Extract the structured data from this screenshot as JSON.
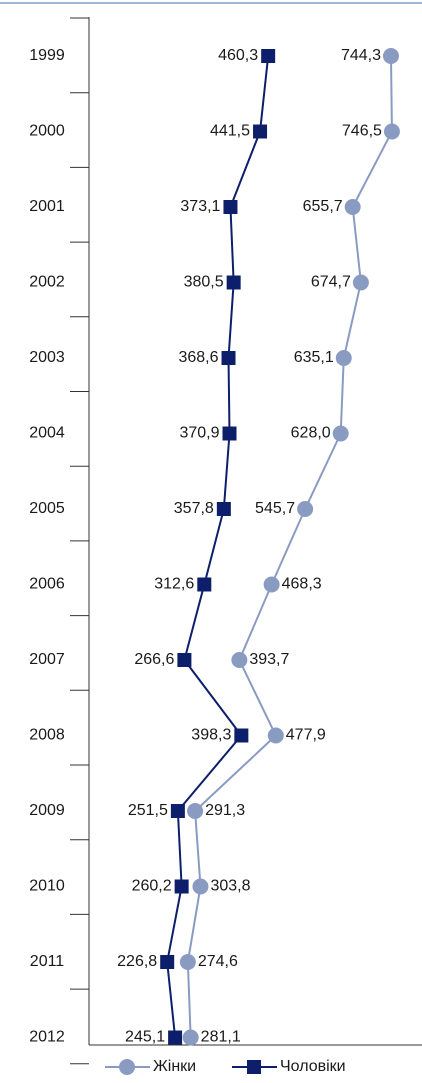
{
  "chart_data": {
    "type": "line",
    "orientation": "horizontal",
    "categories": [
      "1999",
      "2000",
      "2001",
      "2002",
      "2003",
      "2004",
      "2005",
      "2006",
      "2007",
      "2008",
      "2009",
      "2010",
      "2011",
      "2012"
    ],
    "xlim": [
      46,
      816
    ],
    "series": [
      {
        "name": "Жінки",
        "color": "#8a9bc2",
        "marker": "circle",
        "values": [
          744.3,
          746.5,
          655.7,
          674.7,
          635.1,
          628.0,
          545.7,
          468.3,
          393.7,
          477.9,
          291.3,
          303.8,
          274.6,
          281.1
        ],
        "value_labels": [
          "744,3",
          "746,5",
          "655,7",
          "674,7",
          "635,1",
          "628,0",
          "545,7",
          "468,3",
          "393,7",
          "477,9",
          "291,3",
          "303,8",
          "274,6",
          "281,1"
        ]
      },
      {
        "name": "Чоловіки",
        "color": "#0d1f6b",
        "marker": "square",
        "values": [
          460.3,
          441.5,
          373.1,
          380.5,
          368.6,
          370.9,
          357.8,
          312.6,
          266.6,
          398.3,
          251.5,
          260.2,
          226.8,
          245.1
        ],
        "value_labels": [
          "460,3",
          "441,5",
          "373,1",
          "380,5",
          "368,6",
          "370,9",
          "357,8",
          "312,6",
          "266,6",
          "398,3",
          "251,5",
          "260,2",
          "226,8",
          "245,1"
        ]
      }
    ]
  }
}
